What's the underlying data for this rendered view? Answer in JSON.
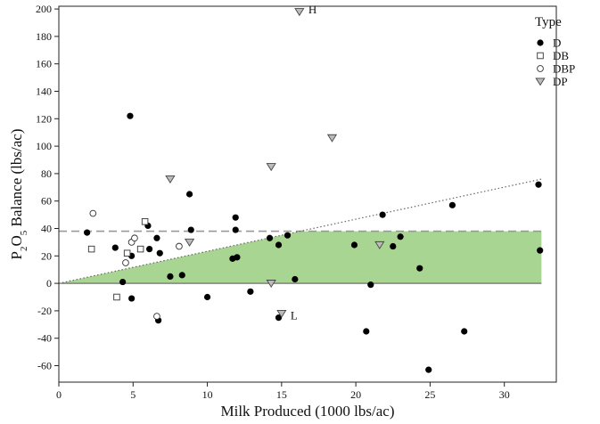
{
  "chart_data": {
    "type": "scatter",
    "xlabel": "Milk Produced (1000 lbs/ac)",
    "ylabel_parts": [
      "P",
      "2",
      "O",
      "5",
      " Balance (lbs/ac)"
    ],
    "xlim": [
      0,
      33.5
    ],
    "ylim": [
      -72,
      202
    ],
    "x_ticks": [
      0,
      5,
      10,
      15,
      20,
      25,
      30
    ],
    "y_ticks": [
      -60,
      -40,
      -20,
      0,
      20,
      40,
      60,
      80,
      100,
      120,
      140,
      160,
      180,
      200
    ],
    "legend": {
      "title": "Type",
      "position": "top-right",
      "entries": [
        {
          "label": "D",
          "marker": "filled-circle"
        },
        {
          "label": "DB",
          "marker": "open-square"
        },
        {
          "label": "DBP",
          "marker": "open-circle"
        },
        {
          "label": "DP",
          "marker": "triangle-down"
        }
      ]
    },
    "reference": {
      "dashed_y": 38,
      "slope_line": {
        "x0": 0,
        "y0": 0,
        "x1": 32.5,
        "y1": 76,
        "style": "dotted"
      },
      "shaded_region": {
        "description": "area between y=0 and min(slope line, 38)",
        "color": "#a8d591",
        "corner_x": 16.25
      },
      "zero_line_y": 0
    },
    "series": [
      {
        "name": "D",
        "marker": "filled-circle",
        "points": [
          [
            1.9,
            37
          ],
          [
            3.8,
            26
          ],
          [
            4.3,
            1
          ],
          [
            4.8,
            122
          ],
          [
            4.9,
            20
          ],
          [
            4.9,
            -11
          ],
          [
            6.0,
            42
          ],
          [
            6.1,
            25
          ],
          [
            6.6,
            33
          ],
          [
            6.8,
            22
          ],
          [
            6.7,
            -27
          ],
          [
            7.5,
            5
          ],
          [
            8.3,
            6
          ],
          [
            8.8,
            65
          ],
          [
            8.9,
            39
          ],
          [
            10.0,
            -10
          ],
          [
            11.7,
            18
          ],
          [
            11.9,
            48
          ],
          [
            11.9,
            39
          ],
          [
            12.0,
            19
          ],
          [
            12.9,
            -6
          ],
          [
            14.2,
            33
          ],
          [
            14.8,
            28
          ],
          [
            14.8,
            -25
          ],
          [
            15.4,
            35
          ],
          [
            15.9,
            3
          ],
          [
            19.9,
            28
          ],
          [
            20.7,
            -35
          ],
          [
            21.0,
            -1
          ],
          [
            21.8,
            50
          ],
          [
            22.5,
            27
          ],
          [
            23.0,
            34
          ],
          [
            24.3,
            11
          ],
          [
            24.9,
            -63
          ],
          [
            26.5,
            57
          ],
          [
            27.3,
            -35
          ],
          [
            32.3,
            72
          ],
          [
            32.4,
            24
          ]
        ]
      },
      {
        "name": "DB",
        "marker": "open-square",
        "points": [
          [
            2.2,
            25
          ],
          [
            3.9,
            -10
          ],
          [
            4.6,
            22
          ],
          [
            5.5,
            25
          ],
          [
            5.8,
            45
          ]
        ]
      },
      {
        "name": "DBP",
        "marker": "open-circle",
        "points": [
          [
            2.3,
            51
          ],
          [
            4.5,
            15
          ],
          [
            4.9,
            30
          ],
          [
            5.1,
            33
          ],
          [
            6.6,
            -24
          ],
          [
            8.1,
            27
          ]
        ]
      },
      {
        "name": "DP",
        "marker": "triangle-down",
        "points": [
          [
            7.5,
            76
          ],
          [
            8.8,
            30
          ],
          [
            14.3,
            85
          ],
          [
            14.3,
            0
          ],
          [
            15.0,
            -22
          ],
          [
            16.2,
            198
          ],
          [
            18.4,
            106
          ],
          [
            21.6,
            28
          ]
        ]
      }
    ],
    "annotations": [
      {
        "text": "H",
        "x": 16.8,
        "y": 200
      },
      {
        "text": "L",
        "x": 15.6,
        "y": -23
      }
    ]
  }
}
